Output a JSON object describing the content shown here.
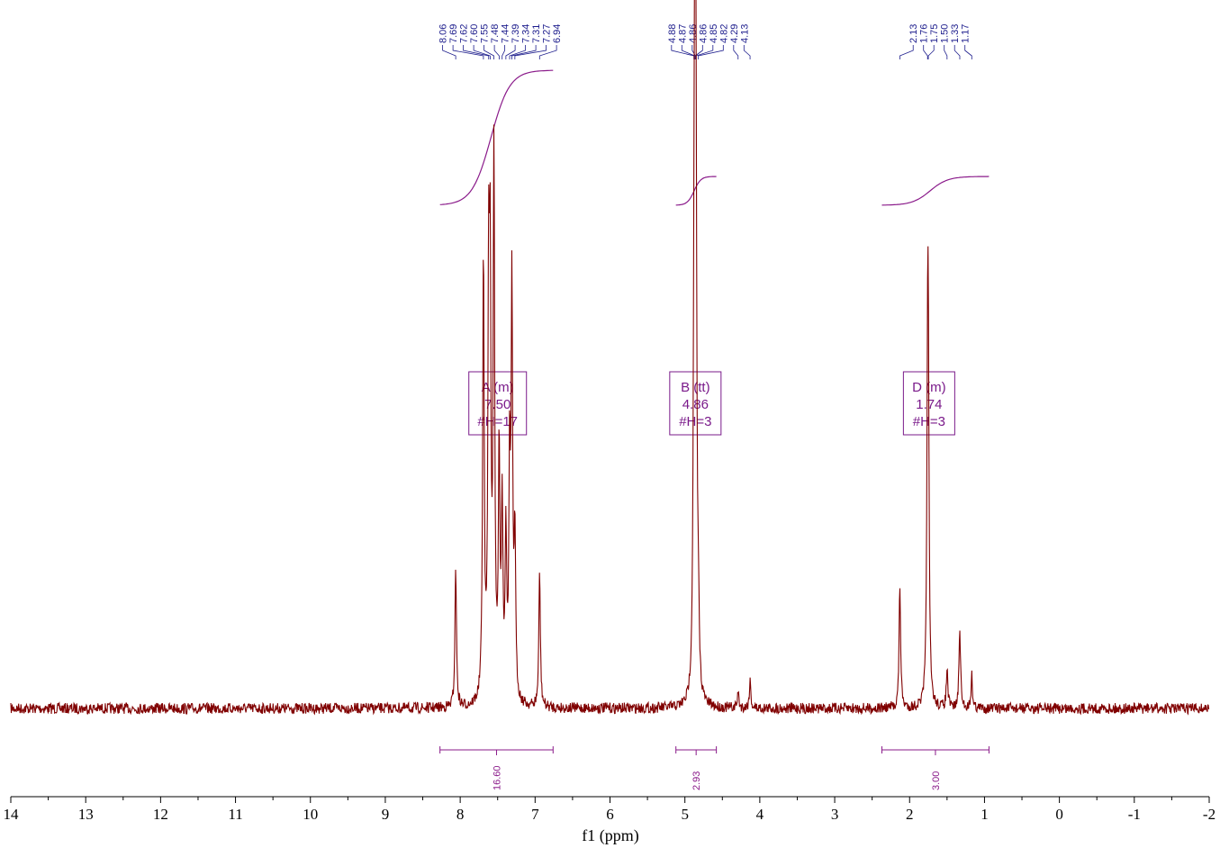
{
  "chart_data": {
    "type": "line",
    "title": "",
    "xlabel": "f1 (ppm)",
    "ylabel": "",
    "xlim": [
      14,
      -2
    ],
    "x_reversed": true,
    "x_ticks": [
      "14",
      "13",
      "12",
      "11",
      "10",
      "9",
      "8",
      "7",
      "6",
      "5",
      "4",
      "3",
      "2",
      "1",
      "0",
      "-1",
      "-2"
    ],
    "grid": false,
    "colors": {
      "spectrum": "#800000",
      "peak_labels": "#1c1c8c",
      "integration": "#8a1a8a",
      "multiplet_box": "#7a1a8a"
    },
    "peaks": [
      {
        "ppm": 8.06,
        "height": 0.26
      },
      {
        "ppm": 7.69,
        "height": 0.82
      },
      {
        "ppm": 7.62,
        "height": 0.72
      },
      {
        "ppm": 7.6,
        "height": 0.7
      },
      {
        "ppm": 7.55,
        "height": 1.0
      },
      {
        "ppm": 7.48,
        "height": 0.45
      },
      {
        "ppm": 7.44,
        "height": 0.35
      },
      {
        "ppm": 7.39,
        "height": 0.3
      },
      {
        "ppm": 7.34,
        "height": 0.42
      },
      {
        "ppm": 7.31,
        "height": 0.74
      },
      {
        "ppm": 7.27,
        "height": 0.3
      },
      {
        "ppm": 6.94,
        "height": 0.25
      },
      {
        "ppm": 4.88,
        "height": 0.4
      },
      {
        "ppm": 4.87,
        "height": 0.55
      },
      {
        "ppm": 4.86,
        "height": 0.8
      },
      {
        "ppm": 4.85,
        "height": 0.55
      },
      {
        "ppm": 4.82,
        "height": 0.12
      },
      {
        "ppm": 4.29,
        "height": 0.03
      },
      {
        "ppm": 4.13,
        "height": 0.05
      },
      {
        "ppm": 2.13,
        "height": 0.23
      },
      {
        "ppm": 1.76,
        "height": 0.5
      },
      {
        "ppm": 1.75,
        "height": 0.5
      },
      {
        "ppm": 1.5,
        "height": 0.07
      },
      {
        "ppm": 1.33,
        "height": 0.15
      },
      {
        "ppm": 1.17,
        "height": 0.06
      }
    ],
    "peak_labels": [
      {
        "group": 1,
        "labels": [
          "8.06",
          "7.69",
          "7.62",
          "7.60",
          "7.55",
          "7.48",
          "7.44",
          "7.39",
          "7.34",
          "7.31",
          "7.27",
          "6.94"
        ]
      },
      {
        "group": 2,
        "labels": [
          "4.88",
          "4.87",
          "4.86",
          "4.86",
          "4.85",
          "4.82",
          "4.29",
          "4.13"
        ]
      },
      {
        "group": 3,
        "labels": [
          "2.13",
          "1.76",
          "1.75",
          "1.50",
          "1.33",
          "1.17"
        ]
      }
    ],
    "multiplets": [
      {
        "label": "A (m)",
        "shift": "7.50",
        "nh": "#H=17",
        "center_ppm": 7.5
      },
      {
        "label": "B (tt)",
        "shift": "4.86",
        "nh": "#H=3",
        "center_ppm": 4.86
      },
      {
        "label": "D (m)",
        "shift": "1.74",
        "nh": "#H=3",
        "center_ppm": 1.74
      }
    ],
    "integrals": [
      {
        "from": 8.27,
        "to": 6.76,
        "value": "16.60"
      },
      {
        "from": 5.12,
        "to": 4.58,
        "value": "2.93"
      },
      {
        "from": 2.37,
        "to": 0.94,
        "value": "3.00"
      }
    ]
  }
}
